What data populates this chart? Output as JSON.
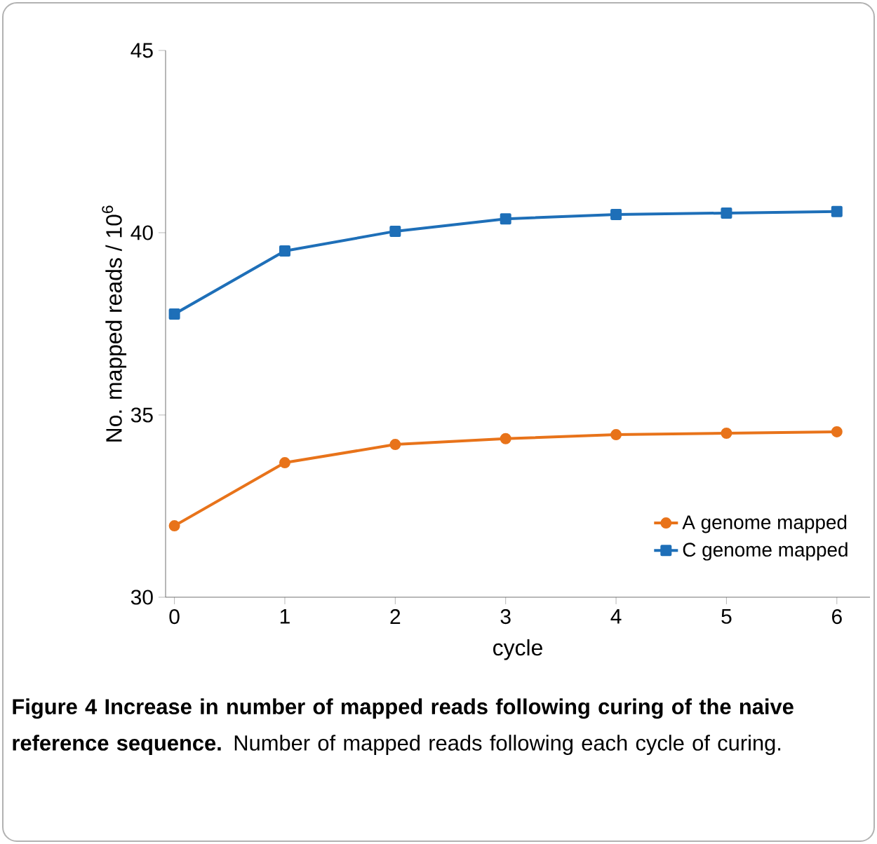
{
  "chart_data": {
    "type": "line",
    "xlabel": "cycle",
    "ylabel": "No. mapped reads / 10$^{6}$",
    "categories": [
      "0",
      "1",
      "2",
      "3",
      "4",
      "5",
      "6"
    ],
    "series": [
      {
        "name": "A genome mapped",
        "color": "#e8731a",
        "marker": "circle",
        "values": [
          31.96,
          33.69,
          34.19,
          34.35,
          34.46,
          34.5,
          34.54
        ]
      },
      {
        "name": "C genome mapped",
        "color": "#1e6fb8",
        "marker": "square",
        "values": [
          37.77,
          39.5,
          40.04,
          40.38,
          40.5,
          40.54,
          40.58
        ]
      }
    ],
    "ylim": [
      30,
      45
    ],
    "yticks": [
      30,
      35,
      40,
      45
    ],
    "legend": "bottom right",
    "grid": false,
    "line_style": "solid",
    "annotations": [
      "**Figure 4 Increase in number of mapped reads following curing of the naive reference sequence.** Number of mapped reads following each cycle of curing."
    ]
  }
}
